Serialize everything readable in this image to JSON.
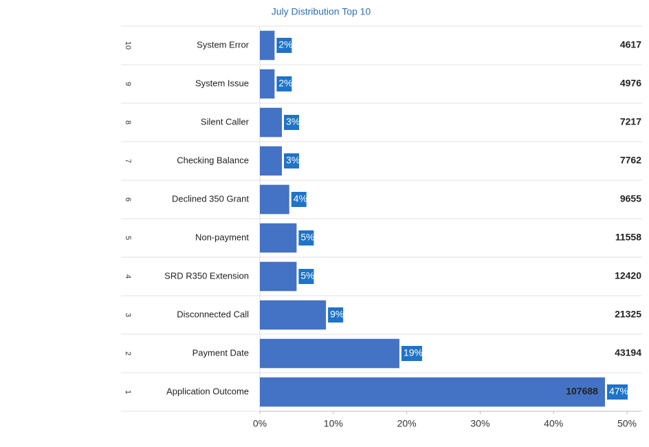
{
  "chart_data": {
    "type": "bar",
    "orientation": "horizontal",
    "title": "July Distribution Top 10",
    "ranks": [
      "10",
      "9",
      "8",
      "7",
      "6",
      "5",
      "4",
      "3",
      "2",
      "1"
    ],
    "categories": [
      "System Error",
      "System Issue",
      "Silent Caller",
      "Checking Balance",
      "Declined 350 Grant",
      "Non-payment",
      "SRD R350 Extension",
      "Disconnected Call",
      "Payment Date",
      "Application Outcome"
    ],
    "values": [
      2,
      2,
      3,
      3,
      4,
      5,
      5,
      9,
      19,
      47
    ],
    "value_labels": [
      "2%",
      "2%",
      "3%",
      "3%",
      "4%",
      "5%",
      "5%",
      "9%",
      "19%",
      "47%"
    ],
    "counts": [
      4617,
      4976,
      7217,
      7762,
      9655,
      11558,
      12420,
      21325,
      43194,
      107688
    ],
    "color": "#4472c4",
    "label_color": "#1f73c8",
    "xlim": [
      0,
      50
    ],
    "xticks": [
      {
        "value": 0,
        "label": "0%"
      },
      {
        "value": 10,
        "label": "10%"
      },
      {
        "value": 20,
        "label": "20%"
      },
      {
        "value": 30,
        "label": "30%"
      },
      {
        "value": 40,
        "label": "40%"
      },
      {
        "value": 50,
        "label": "50%"
      }
    ],
    "grid": true
  }
}
